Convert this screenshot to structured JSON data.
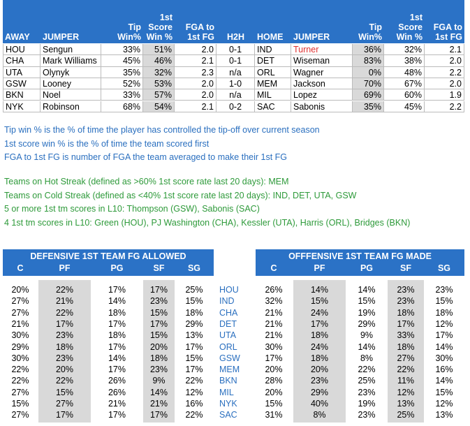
{
  "matchups": {
    "headers": [
      "AWAY",
      "JUMPER",
      "Tip Win%",
      "1st Score Win %",
      "FGA to 1st FG",
      "H2H",
      "HOME",
      "JUMPER",
      "Tip Win%",
      "1st Score Win %",
      "FGA to 1st FG"
    ],
    "rows": [
      [
        "HOU",
        "Sengun",
        "33%",
        "51%",
        "2.0",
        "0-1",
        "IND",
        "Turner",
        "36%",
        "32%",
        "2.1"
      ],
      [
        "CHA",
        "Mark Williams",
        "45%",
        "46%",
        "2.1",
        "0-1",
        "DET",
        "Wiseman",
        "83%",
        "38%",
        "2.0"
      ],
      [
        "UTA",
        "Olynyk",
        "35%",
        "32%",
        "2.3",
        "n/a",
        "ORL",
        "Wagner",
        "0%",
        "48%",
        "2.2"
      ],
      [
        "GSW",
        "Looney",
        "52%",
        "53%",
        "2.0",
        "1-0",
        "MEM",
        "Jackson",
        "70%",
        "67%",
        "2.0"
      ],
      [
        "BKN",
        "Noel",
        "33%",
        "57%",
        "2.0",
        "n/a",
        "MIL",
        "Lopez",
        "69%",
        "60%",
        "1.9"
      ],
      [
        "NYK",
        "Robinson",
        "68%",
        "54%",
        "2.1",
        "0-2",
        "SAC",
        "Sabonis",
        "35%",
        "45%",
        "2.2"
      ]
    ]
  },
  "notes": {
    "definitions": [
      "Tip win % is the % of time the player has controlled the tip-off over current season",
      "1st score win % is the % of time the team scored first",
      "FGA to 1st FG is number of FGA the team averaged to make their 1st FG"
    ],
    "streaks": [
      "Teams on Hot Streak (defined as >60% 1st score rate last 20 days): MEM",
      "Teams on Cold Streak (defined as <40% 1st score rate last 20 days): IND, DET, UTA, GSW",
      "5 or more 1st tm scores in L10: Thompson (GSW), Sabonis (SAC)",
      "4 1st tm scores in L10: Green (HOU), PJ Washington (CHA), Kessler (UTA), Harris (ORL), Bridges (BKN)"
    ]
  },
  "positions": {
    "defense_title": "DEFENSIVE 1ST TEAM FG ALLOWED",
    "offense_title": "OFFFENSIVE 1ST TEAM FG MADE",
    "defense_headers": [
      "C",
      "PF",
      "PG",
      "SF",
      "SG"
    ],
    "offense_headers": [
      "C",
      "PF",
      "PG",
      "SF",
      "SG"
    ],
    "rows": [
      {
        "defense": [
          "20%",
          "22%",
          "17%",
          "17%",
          "25%"
        ],
        "team": "HOU",
        "offense": [
          "26%",
          "14%",
          "14%",
          "23%",
          "23%"
        ]
      },
      {
        "defense": [
          "27%",
          "21%",
          "14%",
          "23%",
          "15%"
        ],
        "team": "IND",
        "offense": [
          "32%",
          "15%",
          "15%",
          "23%",
          "15%"
        ]
      },
      {
        "defense": [
          "27%",
          "22%",
          "18%",
          "15%",
          "18%"
        ],
        "team": "CHA",
        "offense": [
          "21%",
          "24%",
          "19%",
          "18%",
          "18%"
        ]
      },
      {
        "defense": [
          "21%",
          "17%",
          "17%",
          "17%",
          "29%"
        ],
        "team": "DET",
        "offense": [
          "21%",
          "17%",
          "29%",
          "17%",
          "12%"
        ]
      },
      {
        "defense": [
          "30%",
          "23%",
          "18%",
          "15%",
          "13%"
        ],
        "team": "UTA",
        "offense": [
          "21%",
          "18%",
          "9%",
          "33%",
          "17%"
        ]
      },
      {
        "defense": [
          "29%",
          "18%",
          "17%",
          "20%",
          "17%"
        ],
        "team": "ORL",
        "offense": [
          "30%",
          "24%",
          "14%",
          "18%",
          "14%"
        ]
      },
      {
        "defense": [
          "30%",
          "23%",
          "14%",
          "18%",
          "15%"
        ],
        "team": "GSW",
        "offense": [
          "17%",
          "18%",
          "8%",
          "27%",
          "30%"
        ]
      },
      {
        "defense": [
          "22%",
          "20%",
          "17%",
          "23%",
          "17%"
        ],
        "team": "MEM",
        "offense": [
          "20%",
          "20%",
          "22%",
          "22%",
          "16%"
        ]
      },
      {
        "defense": [
          "22%",
          "22%",
          "26%",
          "9%",
          "22%"
        ],
        "team": "BKN",
        "offense": [
          "28%",
          "23%",
          "25%",
          "11%",
          "14%"
        ]
      },
      {
        "defense": [
          "27%",
          "15%",
          "26%",
          "14%",
          "12%"
        ],
        "team": "MIL",
        "offense": [
          "20%",
          "29%",
          "23%",
          "12%",
          "15%"
        ]
      },
      {
        "defense": [
          "15%",
          "27%",
          "21%",
          "21%",
          "16%"
        ],
        "team": "NYK",
        "offense": [
          "15%",
          "40%",
          "19%",
          "13%",
          "12%"
        ]
      },
      {
        "defense": [
          "27%",
          "17%",
          "17%",
          "17%",
          "22%"
        ],
        "team": "SAC",
        "offense": [
          "31%",
          "8%",
          "23%",
          "25%",
          "13%"
        ]
      }
    ]
  }
}
